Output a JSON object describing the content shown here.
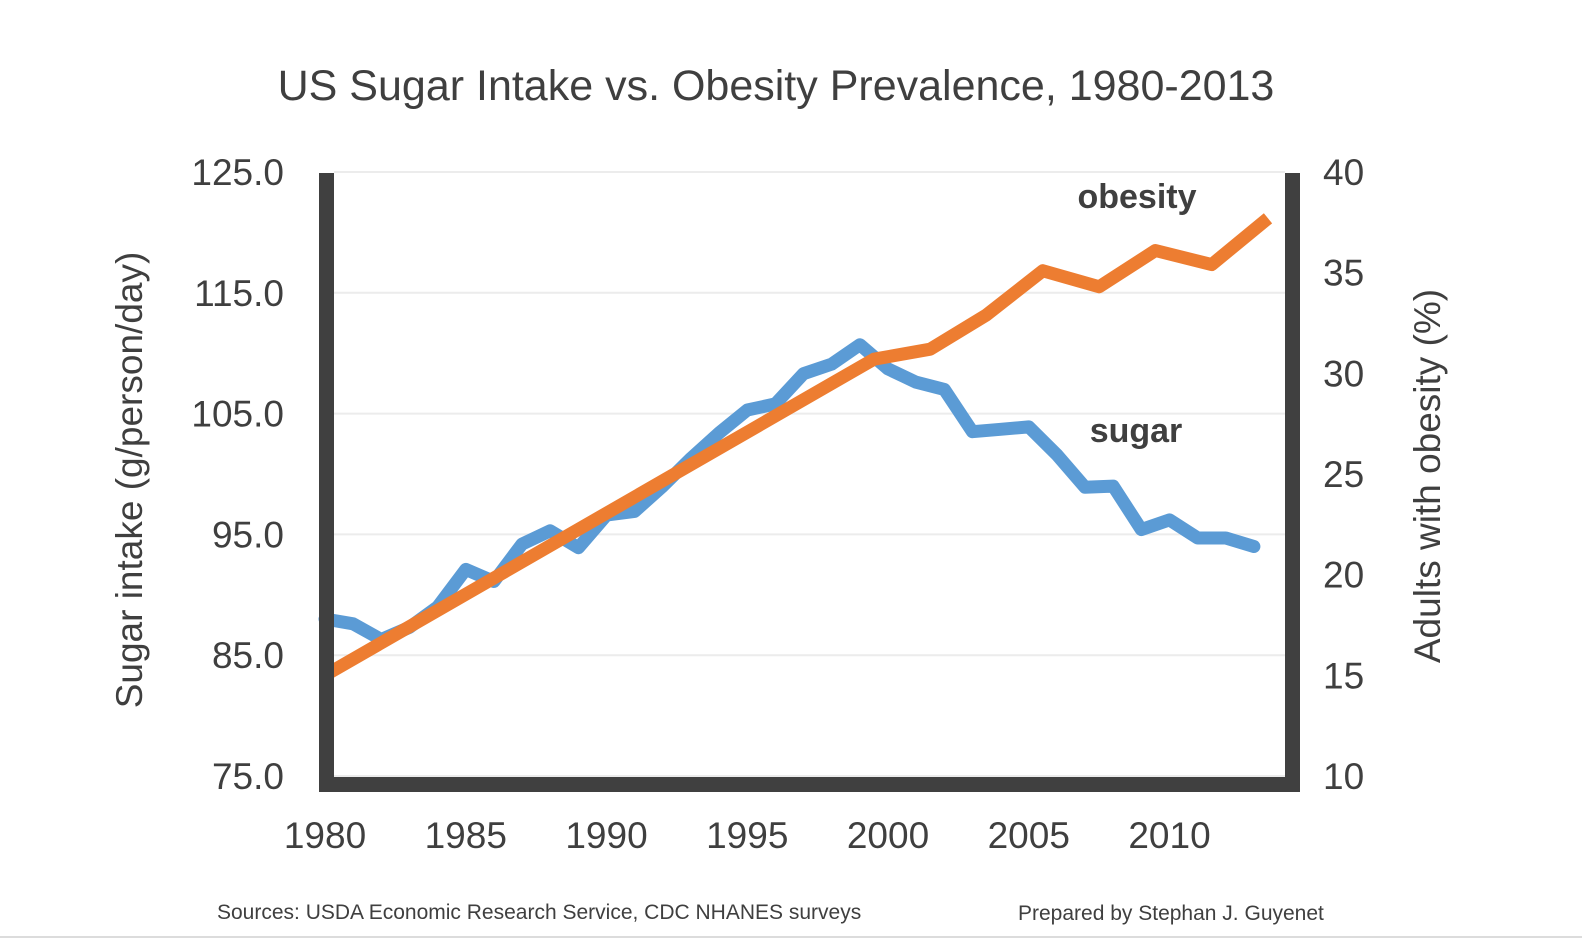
{
  "chart_data": {
    "type": "line",
    "title": "US Sugar Intake vs. Obesity Prevalence, 1980-2013",
    "xlabel": "",
    "ylabel": "Sugar intake (g/person/day)",
    "y2label": "Adults with obesity (%)",
    "xlim": [
      1980,
      2014
    ],
    "ylim": [
      75.0,
      125.0
    ],
    "y2lim": [
      10,
      40
    ],
    "x_ticks": [
      "1980",
      "1985",
      "1990",
      "1995",
      "2000",
      "2005",
      "2010"
    ],
    "y_ticks": [
      "125.0",
      "115.0",
      "105.0",
      "95.0",
      "85.0",
      "75.0"
    ],
    "y2_ticks": [
      "40",
      "35",
      "30",
      "25",
      "20",
      "15",
      "10"
    ],
    "grid": true,
    "series": [
      {
        "name": "sugar",
        "axis": "left",
        "color": "#5b9bd5",
        "x": [
          1980,
          1981,
          1982,
          1983,
          1984,
          1985,
          1986,
          1987,
          1988,
          1989,
          1990,
          1991,
          1992,
          1993,
          1994,
          1995,
          1996,
          1997,
          1998,
          1999,
          2000,
          2001,
          2002,
          2003,
          2004,
          2005,
          2006,
          2007,
          2008,
          2009,
          2010,
          2011,
          2012,
          2013
        ],
        "values": [
          88.0,
          87.6,
          86.3,
          87.3,
          89.0,
          92.1,
          91.1,
          94.2,
          95.3,
          93.9,
          96.6,
          96.9,
          99.0,
          101.3,
          103.4,
          105.3,
          105.8,
          108.3,
          109.1,
          110.7,
          108.7,
          107.6,
          107.0,
          103.5,
          103.7,
          103.9,
          101.6,
          98.9,
          99.0,
          95.4,
          96.2,
          94.7,
          94.7,
          94.0
        ]
      },
      {
        "name": "obesity",
        "axis": "right",
        "color": "#ed7d31",
        "x": [
          1980,
          1999.5,
          2001.5,
          2003.5,
          2005.5,
          2007.5,
          2009.5,
          2011.5,
          2013.5
        ],
        "values": [
          15.0,
          30.7,
          31.2,
          32.9,
          35.1,
          34.3,
          36.1,
          35.4,
          37.7
        ]
      }
    ],
    "annotations": [
      {
        "text": "obesity",
        "series": "obesity"
      },
      {
        "text": "sugar",
        "series": "sugar"
      }
    ]
  },
  "footer": {
    "sources": "Sources: USDA Economic Research Service, CDC NHANES surveys",
    "credit": "Prepared by Stephan J. Guyenet"
  }
}
